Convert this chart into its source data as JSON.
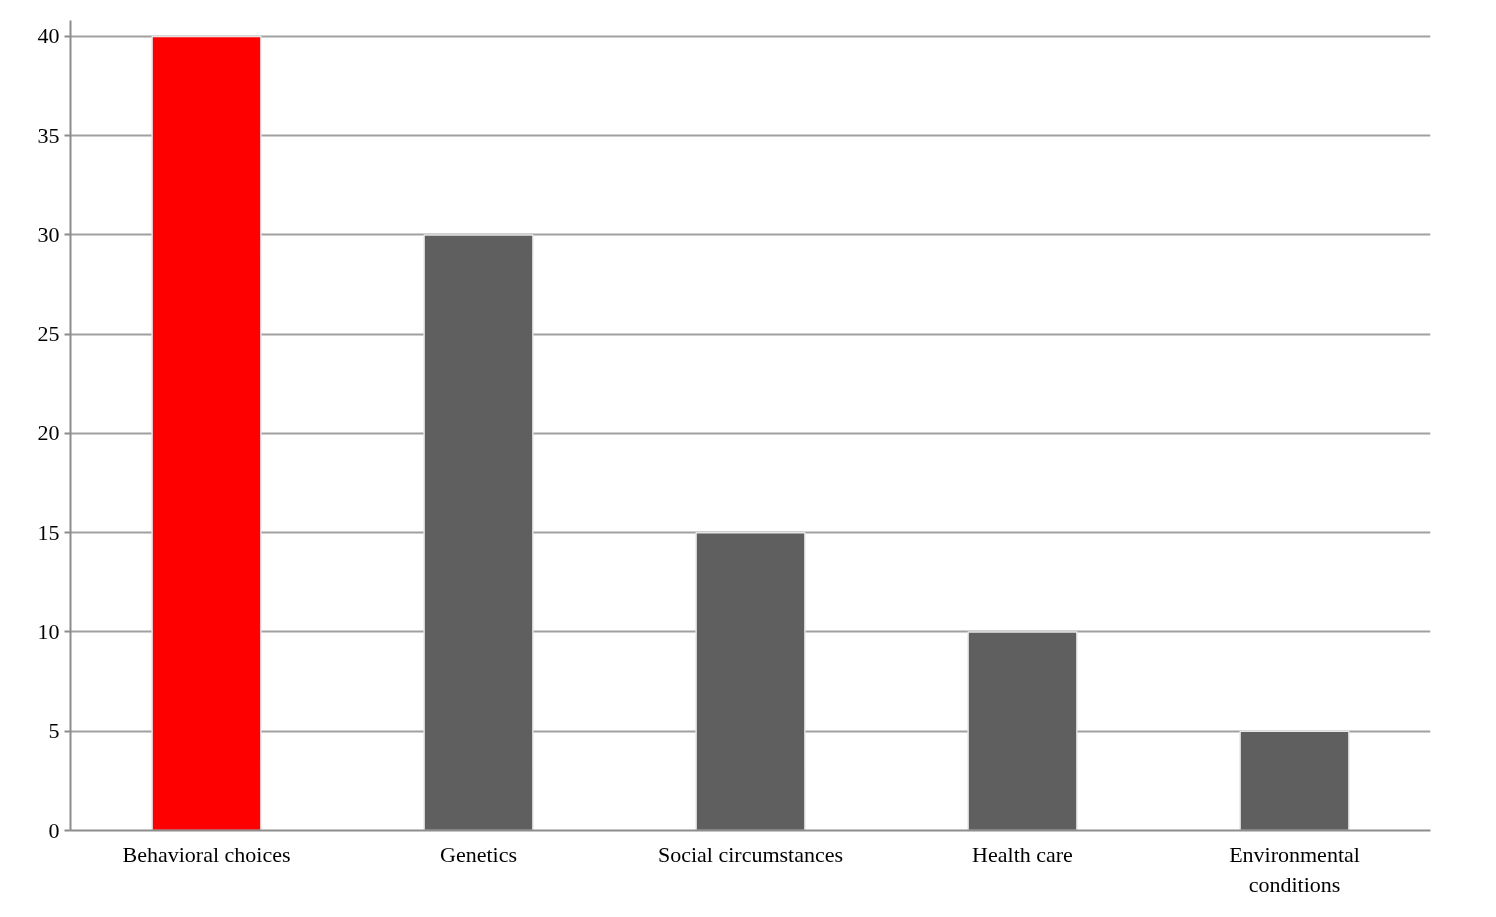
{
  "chart_data": {
    "type": "bar",
    "categories": [
      "Behavioral choices",
      "Genetics",
      "Social circumstances",
      "Health care",
      "Environmental conditions"
    ],
    "values": [
      40,
      30,
      15,
      10,
      5
    ],
    "colors": [
      "#ff0000",
      "#5f5f5f",
      "#5f5f5f",
      "#5f5f5f",
      "#5f5f5f"
    ],
    "ylim": [
      0,
      40
    ],
    "yticks": [
      0,
      5,
      10,
      15,
      20,
      25,
      30,
      35,
      40
    ],
    "grid": "y"
  }
}
